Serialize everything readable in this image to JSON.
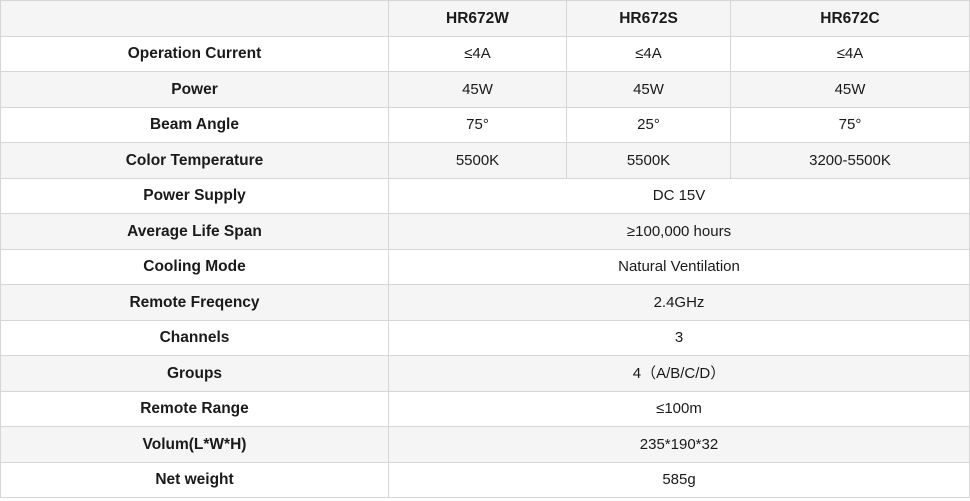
{
  "models": [
    "HR672W",
    "HR672S",
    "HR672C"
  ],
  "rows": [
    {
      "label": "Operation Current",
      "values": [
        "≤4A",
        "≤4A",
        "≤4A"
      ]
    },
    {
      "label": "Power",
      "values": [
        "45W",
        "45W",
        "45W"
      ]
    },
    {
      "label": "Beam Angle",
      "values": [
        "75°",
        "25°",
        "75°"
      ]
    },
    {
      "label": "Color Temperature",
      "values": [
        "5500K",
        "5500K",
        "3200-5500K"
      ]
    },
    {
      "label": "Power Supply",
      "value": "DC 15V"
    },
    {
      "label": "Average Life Span",
      "value": "≥100,000 hours"
    },
    {
      "label": "Cooling Mode",
      "value": "Natural Ventilation"
    },
    {
      "label": "Remote Freqency",
      "value": "2.4GHz"
    },
    {
      "label": "Channels",
      "value": "3"
    },
    {
      "label": "Groups",
      "value": "4（A/B/C/D）"
    },
    {
      "label": "Remote Range",
      "value": "≤100m"
    },
    {
      "label": "Volum(L*W*H)",
      "value": "235*190*32"
    },
    {
      "label": "Net weight",
      "value": "585g"
    }
  ]
}
